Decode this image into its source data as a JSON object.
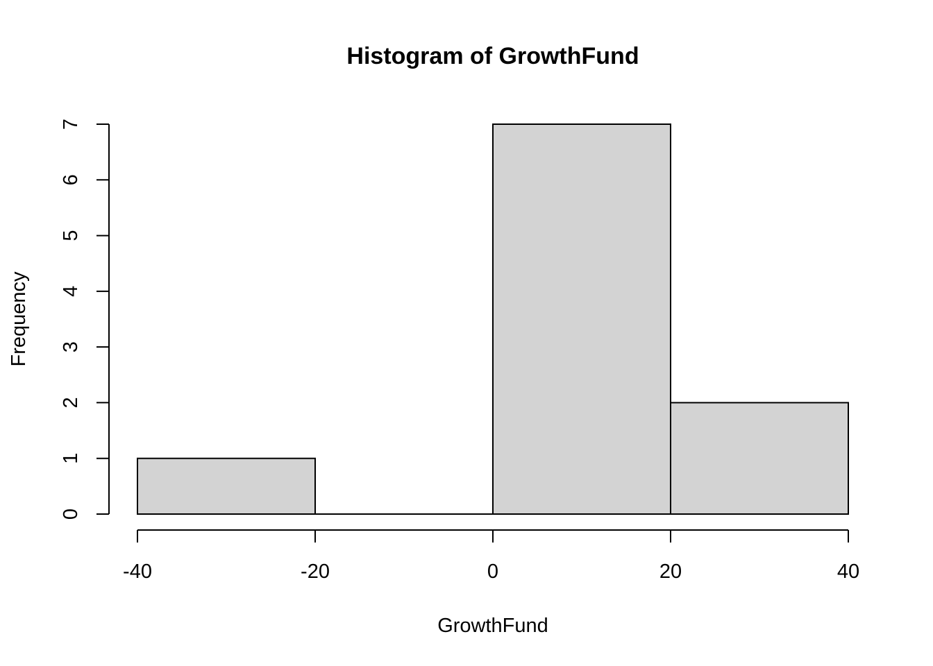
{
  "chart_data": {
    "type": "bar",
    "title": "Histogram of GrowthFund",
    "xlabel": "GrowthFund",
    "ylabel": "Frequency",
    "bins": [
      {
        "from": -40,
        "to": -20,
        "count": 1
      },
      {
        "from": -20,
        "to": 0,
        "count": 0
      },
      {
        "from": 0,
        "to": 20,
        "count": 7
      },
      {
        "from": 20,
        "to": 40,
        "count": 2
      }
    ],
    "xlim": [
      -40,
      40
    ],
    "ylim": [
      0,
      7
    ],
    "x_ticks": [
      -40,
      -20,
      0,
      20,
      40
    ],
    "y_ticks": [
      0,
      1,
      2,
      3,
      4,
      5,
      6,
      7
    ],
    "bar_color": "#d3d3d3",
    "grid": false
  }
}
